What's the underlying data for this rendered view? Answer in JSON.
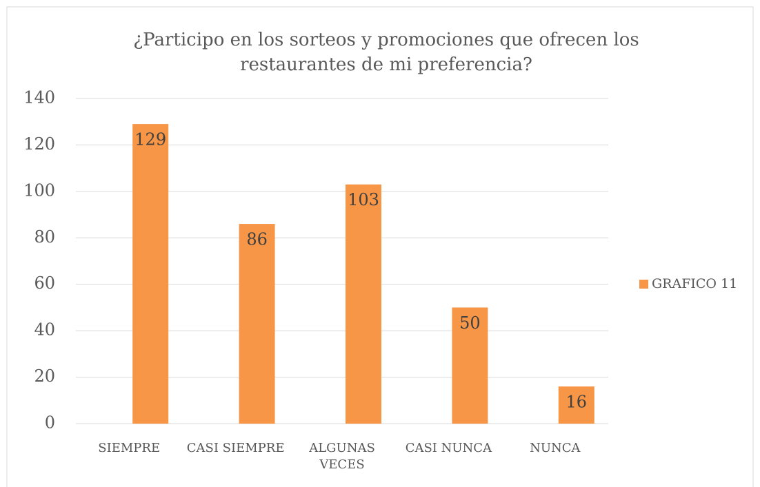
{
  "chart_data": {
    "type": "bar",
    "title": "¿Participo en los sorteos y promociones que ofrecen los restaurantes de mi preferencia?",
    "categories": [
      "SIEMPRE",
      "CASI SIEMPRE",
      "ALGUNAS VECES",
      "CASI NUNCA",
      "NUNCA"
    ],
    "series": [
      {
        "name": "GRAFICO 11",
        "color": "#f79646",
        "values": [
          129,
          86,
          103,
          50,
          16
        ]
      }
    ],
    "ylim": [
      0,
      140
    ],
    "yticks": [
      0,
      20,
      40,
      60,
      80,
      100,
      120,
      140
    ],
    "grid": true,
    "legend": "right"
  }
}
